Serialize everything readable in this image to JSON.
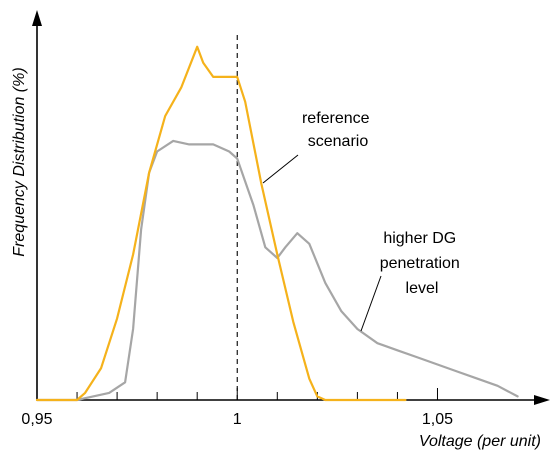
{
  "chart_data": {
    "type": "line",
    "title": "",
    "xlabel": "Voltage (per unit)",
    "ylabel": "Frequency Distribution (%)",
    "xlim": [
      0.95,
      1.075
    ],
    "ylim": [
      0,
      100
    ],
    "x_tick_labels": [
      {
        "value": 0.95,
        "label": "0,95"
      },
      {
        "value": 1.0,
        "label": "1"
      },
      {
        "value": 1.05,
        "label": "1,05"
      }
    ],
    "x_minor_ticks": [
      0.96,
      0.97,
      0.98,
      0.99,
      1.01,
      1.02,
      1.03,
      1.04
    ],
    "reference_line_x": 1.0,
    "grid": false,
    "colors": {
      "reference": "#f5b21b",
      "higher_dg": "#a6a6a6",
      "axis": "#000000"
    },
    "series": [
      {
        "key": "reference",
        "x": [
          0.95,
          0.96,
          0.962,
          0.966,
          0.97,
          0.974,
          0.978,
          0.982,
          0.986,
          0.99,
          0.9915,
          0.994,
          0.996,
          1.0,
          1.002,
          1.006,
          1.01,
          1.014,
          1.018,
          1.02,
          1.022,
          1.03,
          1.042
        ],
        "y": [
          0,
          0,
          2,
          9,
          23,
          41,
          64,
          80,
          88,
          99.5,
          95,
          91,
          91,
          91,
          84,
          61,
          41,
          22,
          6,
          1,
          0,
          0,
          0
        ]
      },
      {
        "key": "higher_dg",
        "x": [
          0.95,
          0.96,
          0.964,
          0.968,
          0.972,
          0.974,
          0.976,
          0.978,
          0.98,
          0.984,
          0.988,
          0.99,
          0.994,
          0.998,
          1.0,
          1.004,
          1.007,
          1.01,
          1.012,
          1.015,
          1.018,
          1.022,
          1.026,
          1.03,
          1.035,
          1.04,
          1.045,
          1.05,
          1.055,
          1.06,
          1.065,
          1.07
        ],
        "y": [
          0,
          0,
          1,
          2,
          5,
          20,
          48,
          64,
          70,
          73,
          72,
          72,
          72,
          70,
          68,
          55,
          43,
          40,
          43,
          47,
          44,
          33,
          25,
          20,
          16,
          14,
          12,
          10,
          8,
          6,
          4,
          1
        ]
      }
    ],
    "annotations": [
      {
        "key": "reference",
        "lines": [
          "reference",
          "scenario"
        ]
      },
      {
        "key": "higher_dg",
        "lines": [
          "higher DG",
          "penetration",
          "level"
        ]
      }
    ]
  }
}
